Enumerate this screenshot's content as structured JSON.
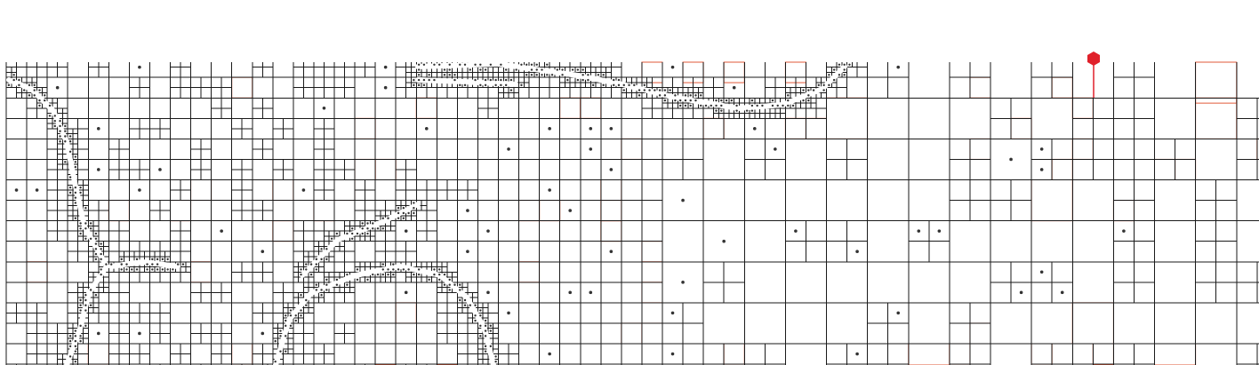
{
  "colors": {
    "background": "#ffffff",
    "grid_line": "#1a1a1a",
    "highlight_line": "#e05a3a",
    "dot": "#333333",
    "path_cell": "#d9d9d9",
    "marker": "#e0202a"
  },
  "icons": {
    "marker": "red-hexagon-marker-icon"
  }
}
